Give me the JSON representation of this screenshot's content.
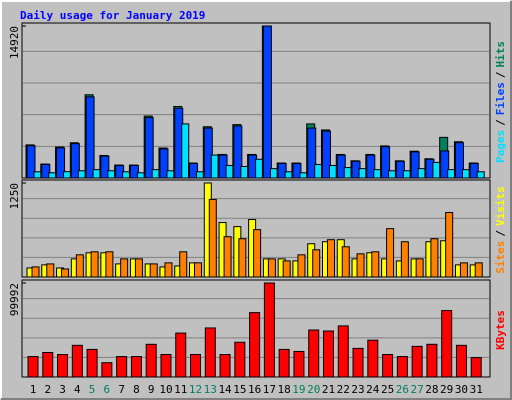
{
  "chart_data": [
    {
      "type": "bar",
      "title": "Daily usage for January 2019",
      "categories": [
        "1",
        "2",
        "3",
        "4",
        "5",
        "6",
        "7",
        "8",
        "9",
        "10",
        "11",
        "12",
        "13",
        "14",
        "15",
        "16",
        "17",
        "18",
        "19",
        "20",
        "21",
        "22",
        "23",
        "24",
        "25",
        "26",
        "27",
        "28",
        "29",
        "30",
        "31"
      ],
      "category_colors": [
        "#000000",
        "#000000",
        "#000000",
        "#000000",
        "#00805c",
        "#00805c",
        "#000000",
        "#000000",
        "#000000",
        "#000000",
        "#000000",
        "#00805c",
        "#00805c",
        "#000000",
        "#000000",
        "#000000",
        "#000000",
        "#000000",
        "#00805c",
        "#00805c",
        "#000000",
        "#000000",
        "#000000",
        "#000000",
        "#000000",
        "#00805c",
        "#00805c",
        "#000000",
        "#000000",
        "#000000",
        "#000000"
      ],
      "legend_separator": "/",
      "ylim": [
        0,
        14920
      ],
      "yticks": [
        14920
      ],
      "series": [
        {
          "name": "Pages",
          "color": "#00e0ff",
          "values": [
            610,
            510,
            620,
            710,
            820,
            710,
            610,
            510,
            820,
            710,
            5310,
            610,
            2250,
            1230,
            1130,
            1840,
            920,
            610,
            510,
            1330,
            1230,
            1020,
            920,
            820,
            710,
            710,
            920,
            1530,
            820,
            820,
            610
          ]
        },
        {
          "name": "Files",
          "color": "#0040ff",
          "values": [
            3170,
            1330,
            2960,
            3370,
            7970,
            2150,
            1230,
            1230,
            5930,
            2860,
            6850,
            1430,
            4900,
            2250,
            5110,
            2250,
            14920,
            1430,
            1430,
            4900,
            4600,
            2250,
            1640,
            2250,
            3070,
            1640,
            2560,
            1840,
            2660,
            3470,
            1430
          ]
        },
        {
          "name": "Hits",
          "color": "#00805c",
          "values": [
            3250,
            1370,
            3040,
            3460,
            8170,
            2210,
            1270,
            1270,
            6080,
            2940,
            7020,
            1470,
            5030,
            2310,
            5240,
            2310,
            14920,
            1470,
            1470,
            5310,
            4720,
            2310,
            1690,
            2310,
            3150,
            1690,
            2630,
            1890,
            3990,
            3560,
            1470
          ]
        }
      ]
    },
    {
      "type": "bar",
      "legend_separator": "/",
      "ylim": [
        0,
        1250
      ],
      "yticks": [
        1250
      ],
      "series": [
        {
          "name": "Sites",
          "color": "#ff8000",
          "values": [
            134,
            174,
            107,
            295,
            335,
            335,
            241,
            241,
            174,
            188,
            335,
            188,
            1032,
            536,
            509,
            630,
            241,
            214,
            295,
            362,
            496,
            402,
            308,
            335,
            643,
            469,
            241,
            509,
            858,
            188,
            188
          ]
        },
        {
          "name": "Visits",
          "color": "#ffff00",
          "values": [
            120,
            161,
            120,
            241,
            322,
            322,
            174,
            241,
            174,
            134,
            147,
            188,
            1250,
            724,
            670,
            764,
            241,
            241,
            214,
            442,
            469,
            496,
            241,
            322,
            241,
            214,
            241,
            469,
            482,
            161,
            161
          ]
        }
      ]
    },
    {
      "type": "bar",
      "ylim": [
        0,
        99992
      ],
      "yticks": [
        99992
      ],
      "series": [
        {
          "name": "KBytes",
          "color": "#ff0000",
          "values": [
            21740,
            26090,
            23910,
            33700,
            29350,
            15220,
            21740,
            21740,
            34780,
            23910,
            46740,
            23910,
            52180,
            23910,
            36960,
            68480,
            99992,
            29350,
            27180,
            50000,
            48920,
            54350,
            30440,
            39130,
            23910,
            21740,
            32610,
            34780,
            70660,
            33700,
            20650
          ]
        }
      ]
    }
  ]
}
